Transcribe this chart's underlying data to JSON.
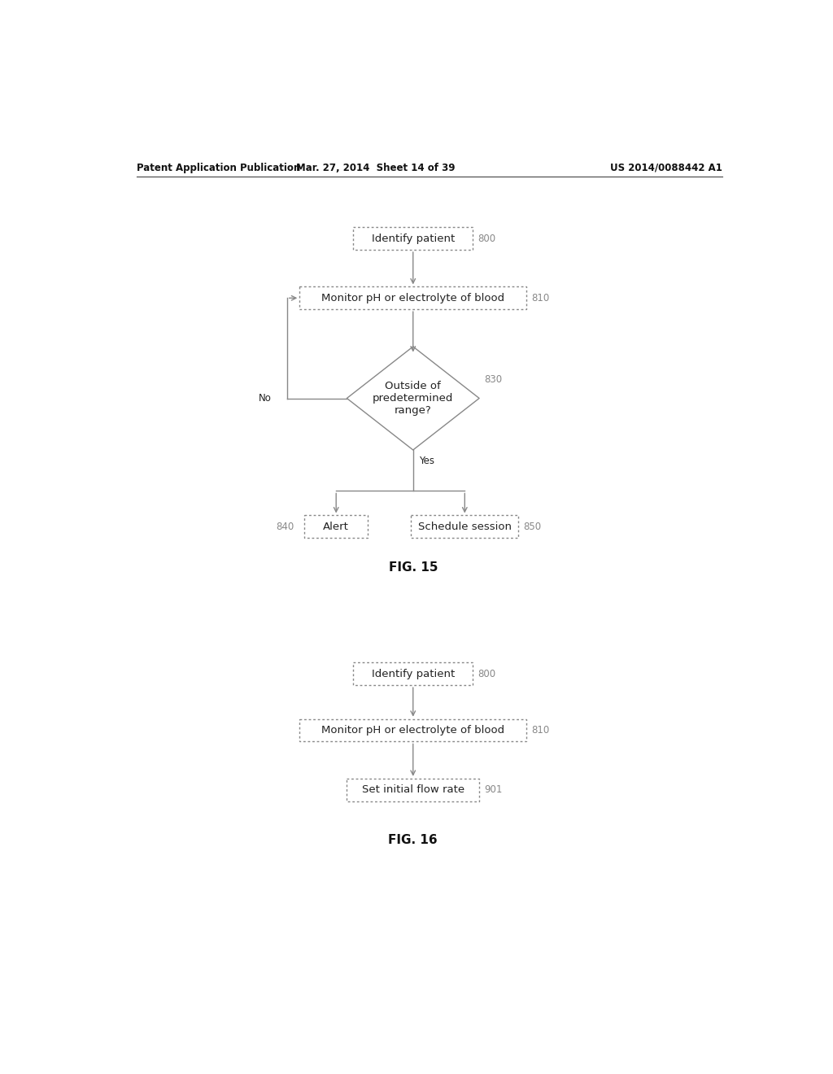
{
  "bg_color": "#ffffff",
  "header_left": "Patent Application Publication",
  "header_mid": "Mar. 27, 2014  Sheet 14 of 39",
  "header_right": "US 2014/0088442 A1",
  "fig1_title": "FIG. 15",
  "fig2_title": "FIG. 16",
  "box_edge_color": "#888888",
  "box_face_color": "#ffffff",
  "arrow_color": "#888888",
  "text_color": "#222222",
  "label_color": "#888888",
  "line_color": "#888888"
}
